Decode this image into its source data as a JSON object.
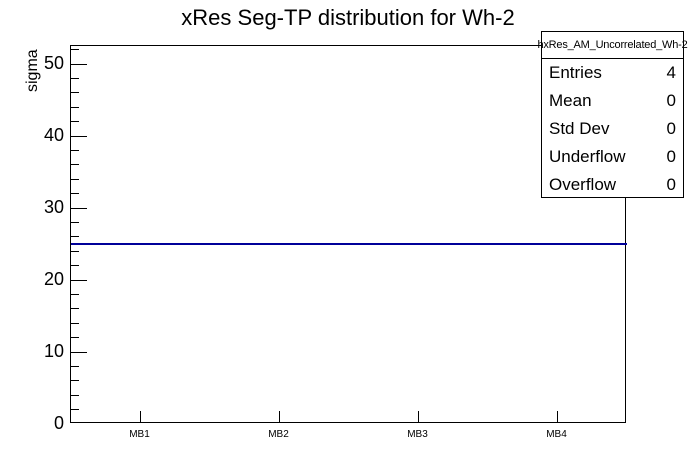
{
  "title": "xRes Seg-TP distribution for Wh-2",
  "y_axis_title": "sigma",
  "stats_box": {
    "header": "hxRes_AM_Uncorrelated_Wh-2",
    "rows": [
      {
        "label": "Entries",
        "value": "4"
      },
      {
        "label": "Mean",
        "value": "0"
      },
      {
        "label": "Std Dev",
        "value": "0"
      },
      {
        "label": "Underflow",
        "value": "0"
      },
      {
        "label": "Overflow",
        "value": "0"
      }
    ]
  },
  "colors": {
    "line": "#000099",
    "frame": "#000000",
    "background": "#ffffff"
  },
  "chart_data": {
    "type": "line",
    "categories": [
      "MB1",
      "MB2",
      "MB3",
      "MB4"
    ],
    "values": [
      25,
      25,
      25,
      25
    ],
    "title": "xRes Seg-TP distribution for Wh-2",
    "xlabel": "",
    "ylabel": "sigma",
    "ylim": [
      0,
      52.5
    ],
    "yticks": [
      0,
      10,
      20,
      30,
      40,
      50
    ],
    "y_minor_step": 2,
    "line_color": "#000099",
    "grid": false,
    "legend_position": "none"
  }
}
